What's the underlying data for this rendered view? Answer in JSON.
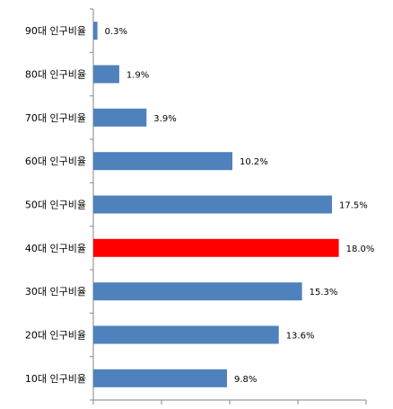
{
  "chart_data": {
    "type": "bar",
    "orientation": "horizontal",
    "categories": [
      "90대 인구비율",
      "80대 인구비율",
      "70대 인구비율",
      "60대 인구비율",
      "50대 인구비율",
      "40대 인구비율",
      "30대 인구비율",
      "20대 인구비율",
      "10대 인구비율"
    ],
    "values": [
      0.3,
      1.9,
      3.9,
      10.2,
      17.5,
      18.0,
      15.3,
      13.6,
      9.8
    ],
    "value_labels": [
      "0.3%",
      "1.9%",
      "3.9%",
      "10.2%",
      "17.5%",
      "18.0%",
      "15.3%",
      "13.6%",
      "9.8%"
    ],
    "highlight_index": 5,
    "colors": {
      "bar": "#4F81BD",
      "highlight": "#FF0000",
      "axis": "#868686"
    },
    "xlim": [
      0,
      20
    ],
    "x_ticks": [
      0,
      5,
      10,
      15,
      20
    ],
    "grid": false,
    "legend": "none"
  }
}
